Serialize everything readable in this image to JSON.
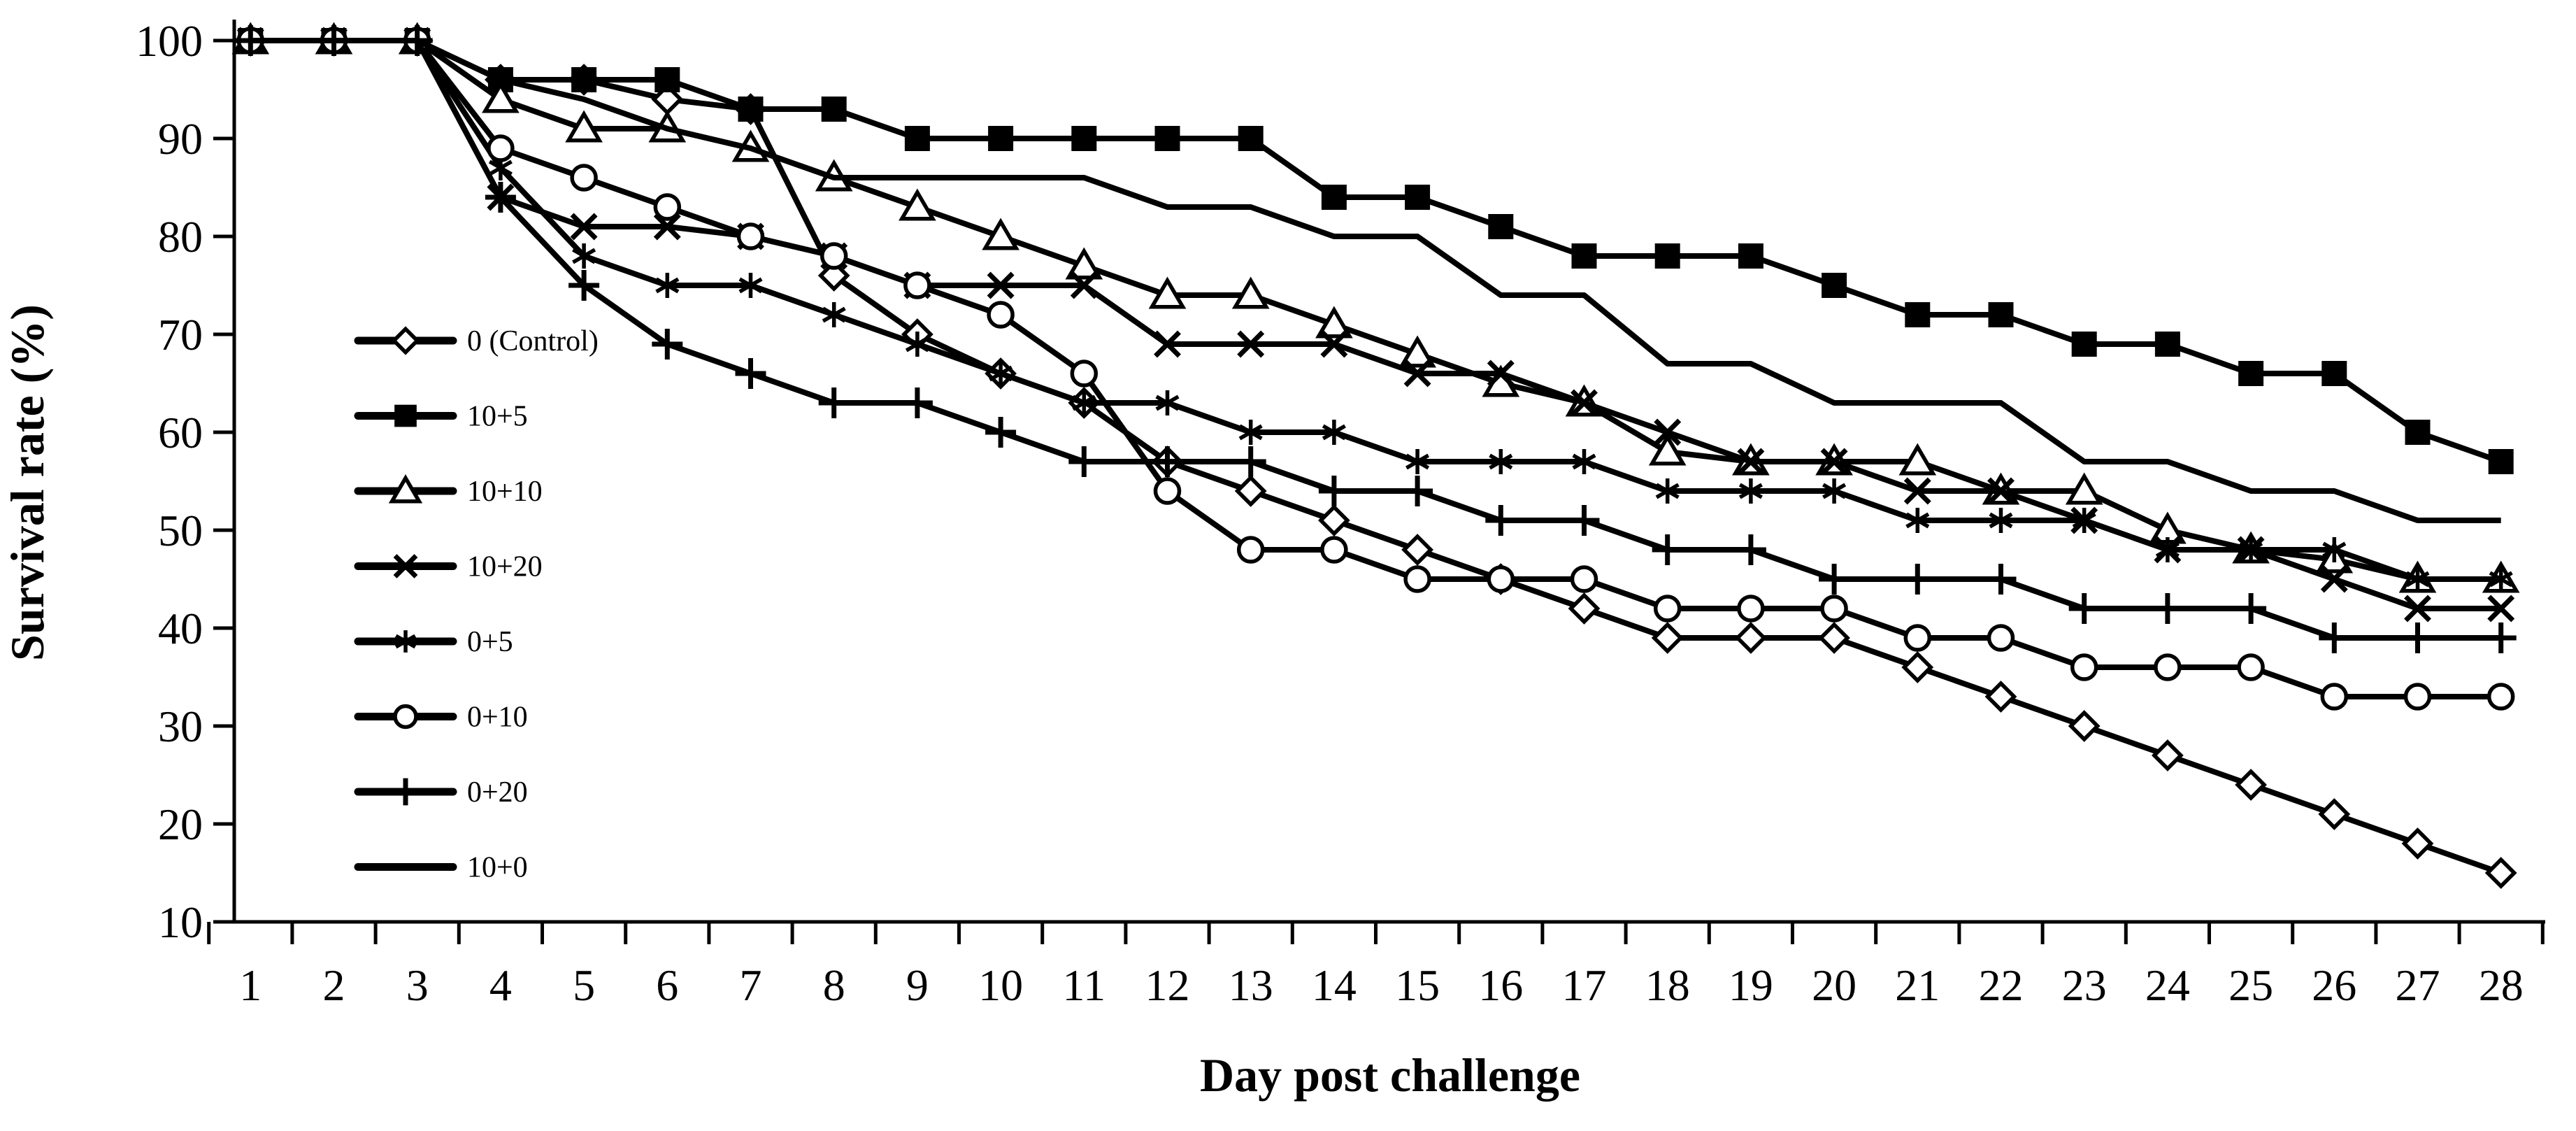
{
  "chart_data": {
    "type": "line",
    "title": "",
    "xlabel": "Day post challenge",
    "ylabel": "Survival rate (%)",
    "x_days": [
      1,
      2,
      3,
      4,
      5,
      6,
      7,
      8,
      9,
      10,
      11,
      12,
      13,
      14,
      15,
      16,
      17,
      18,
      19,
      20,
      21,
      22,
      23,
      24,
      25,
      26,
      27,
      28
    ],
    "ylim": [
      10,
      100
    ],
    "yticks": [
      10,
      20,
      30,
      40,
      50,
      60,
      70,
      80,
      90,
      100
    ],
    "grid": false,
    "legend_position": "inside-upper-left",
    "line_color": "#000000",
    "background_color": "#ffffff",
    "series": [
      {
        "name": "0 (Control)",
        "marker": "diamond",
        "filled": false,
        "values": [
          100,
          100,
          100,
          96,
          96,
          94,
          93,
          76,
          70,
          66,
          63,
          57,
          54,
          51,
          48,
          45,
          42,
          39,
          39,
          39,
          36,
          33,
          30,
          27,
          24,
          21,
          18,
          15
        ]
      },
      {
        "name": "10+5",
        "marker": "square",
        "filled": true,
        "values": [
          100,
          100,
          100,
          96,
          96,
          96,
          93,
          93,
          90,
          90,
          90,
          90,
          90,
          84,
          84,
          81,
          78,
          78,
          78,
          75,
          72,
          72,
          69,
          69,
          66,
          66,
          60,
          57
        ]
      },
      {
        "name": "10+10",
        "marker": "triangle",
        "filled": false,
        "values": [
          100,
          100,
          100,
          94,
          91,
          91,
          89,
          86,
          83,
          80,
          77,
          74,
          74,
          71,
          68,
          65,
          63,
          58,
          57,
          57,
          57,
          54,
          54,
          50,
          48,
          47,
          45,
          45
        ]
      },
      {
        "name": "10+20",
        "marker": "x",
        "filled": false,
        "values": [
          100,
          100,
          100,
          84,
          81,
          81,
          80,
          78,
          75,
          75,
          75,
          69,
          69,
          69,
          66,
          66,
          63,
          60,
          57,
          57,
          54,
          54,
          51,
          48,
          48,
          45,
          42,
          42
        ]
      },
      {
        "name": "0+5",
        "marker": "asterisk",
        "filled": false,
        "values": [
          100,
          100,
          100,
          87,
          78,
          75,
          75,
          72,
          69,
          66,
          63,
          63,
          60,
          60,
          57,
          57,
          57,
          54,
          54,
          54,
          51,
          51,
          51,
          48,
          48,
          48,
          45,
          45
        ]
      },
      {
        "name": "0+10",
        "marker": "circle",
        "filled": false,
        "values": [
          100,
          100,
          100,
          89,
          86,
          83,
          80,
          78,
          75,
          72,
          66,
          54,
          48,
          48,
          45,
          45,
          45,
          42,
          42,
          42,
          39,
          39,
          36,
          36,
          36,
          33,
          33,
          33
        ]
      },
      {
        "name": "0+20",
        "marker": "plus",
        "filled": false,
        "values": [
          100,
          100,
          100,
          84,
          75,
          69,
          66,
          63,
          63,
          60,
          57,
          57,
          57,
          54,
          54,
          51,
          51,
          48,
          48,
          45,
          45,
          45,
          42,
          42,
          42,
          39,
          39,
          39
        ]
      },
      {
        "name": "10+0",
        "marker": "none",
        "filled": false,
        "values": [
          100,
          100,
          100,
          96,
          94,
          91,
          89,
          86,
          86,
          86,
          86,
          83,
          83,
          80,
          80,
          74,
          74,
          67,
          67,
          63,
          63,
          63,
          57,
          57,
          54,
          54,
          51,
          51
        ]
      }
    ]
  }
}
